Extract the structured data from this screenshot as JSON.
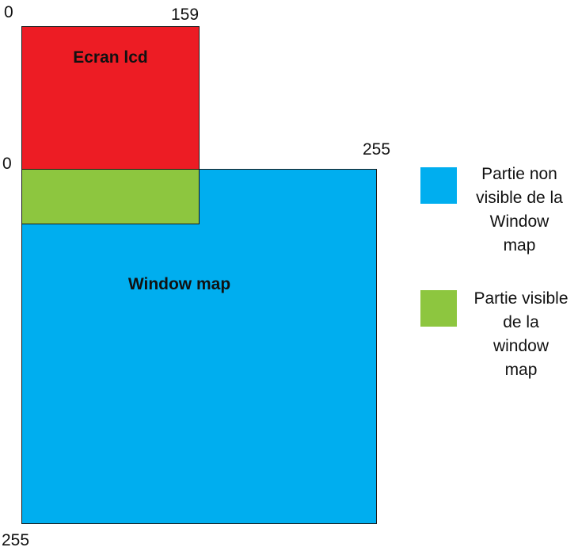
{
  "diagram": {
    "lcd": {
      "title": "Ecran lcd",
      "start_label": "0",
      "end_label": "159",
      "color": "#ed1c24"
    },
    "window": {
      "title": "Window map",
      "start_label": "0",
      "end_label_x": "255",
      "end_label_y": "255",
      "color": "#00aeef"
    },
    "visible": {
      "color": "#8dc63f"
    }
  },
  "legend": {
    "items": [
      {
        "lines": [
          "Partie non",
          "visible de la",
          "Window",
          "map"
        ],
        "color": "#00aeef"
      },
      {
        "lines": [
          "Partie visible",
          "de la",
          "window",
          "map"
        ],
        "color": "#8dc63f"
      }
    ]
  }
}
